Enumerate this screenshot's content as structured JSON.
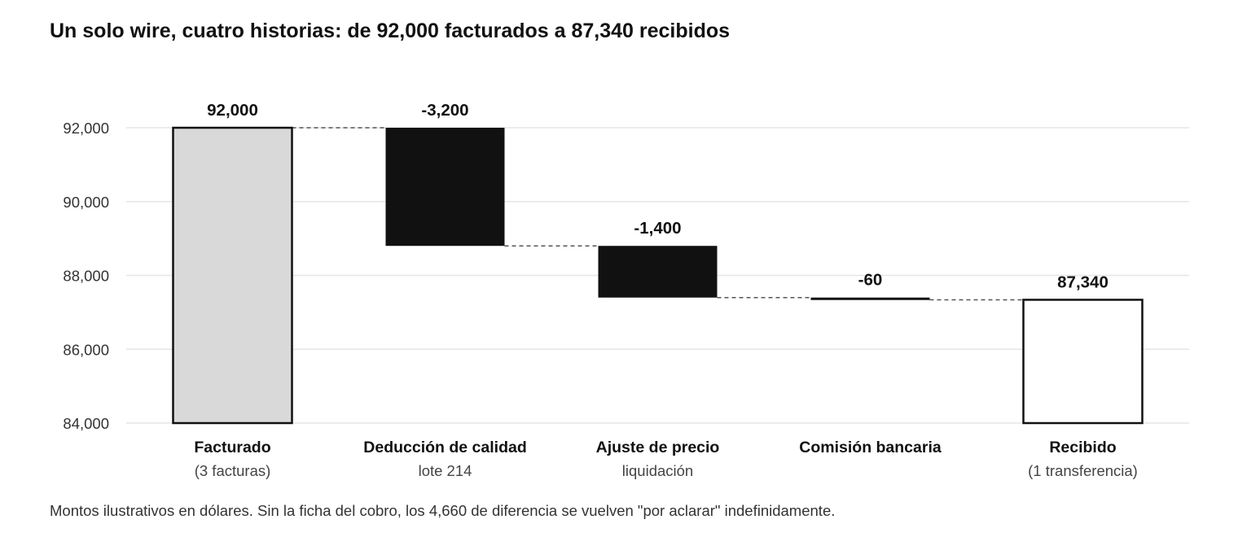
{
  "chart_data": {
    "type": "waterfall",
    "title": "Un solo wire, cuatro historias: de 92,000 facturados a 87,340 recibidos",
    "note": "Montos ilustrativos en dólares. Sin la ficha del cobro, los 4,660 de diferencia se vuelven \"por aclarar\" indefinidamente.",
    "ylim": [
      84000,
      92000
    ],
    "yticks": [
      84000,
      86000,
      88000,
      90000,
      92000
    ],
    "ytick_labels": [
      "84,000",
      "86,000",
      "88,000",
      "90,000",
      "92,000"
    ],
    "grid": true,
    "categories": [
      {
        "label": "Facturado",
        "sub": "(3 facturas)",
        "kind": "total",
        "value": 92000,
        "data_label": "92,000",
        "fill": "#d9d9d9"
      },
      {
        "label": "Deducción de calidad",
        "sub": "lote 214",
        "kind": "delta",
        "value": -3200,
        "data_label": "-3,200",
        "fill": "#111111"
      },
      {
        "label": "Ajuste de precio",
        "sub": "liquidación",
        "kind": "delta",
        "value": -1400,
        "data_label": "-1,400",
        "fill": "#111111"
      },
      {
        "label": "Comisión bancaria",
        "sub": "",
        "kind": "delta",
        "value": -60,
        "data_label": "-60",
        "fill": "#111111"
      },
      {
        "label": "Recibido",
        "sub": "(1 transferencia)",
        "kind": "total",
        "value": 87340,
        "data_label": "87,340",
        "fill": "#ffffff"
      }
    ]
  }
}
